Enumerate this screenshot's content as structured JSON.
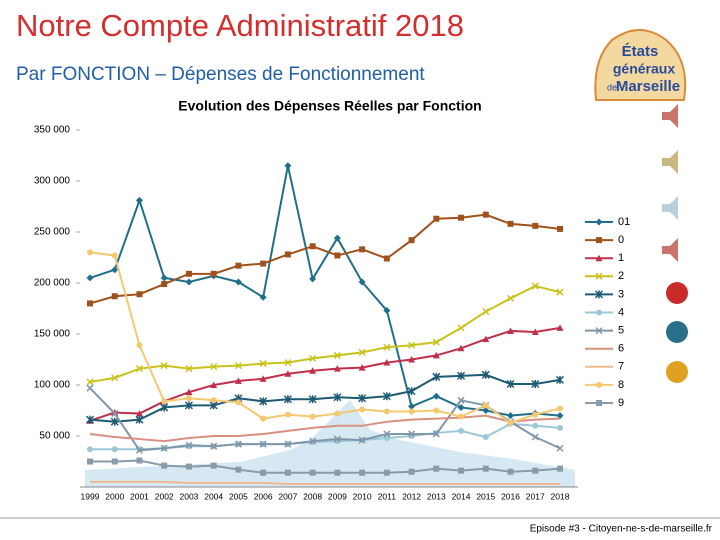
{
  "title": "Notre Compte Administratif 2018",
  "subtitle": "Par FONCTION – Dépenses de Fonctionnement",
  "logo": {
    "line1": "États",
    "line2": "généraux",
    "line3": "de",
    "line4": "Marseille"
  },
  "footer": "Episode #3 - Citoyen-ne-s-de-marseille.fr",
  "chart_data": {
    "type": "line",
    "title": "Evolution des Dépenses Réelles par Fonction",
    "categories": [
      "1999",
      "2000",
      "2001",
      "2002",
      "2003",
      "2004",
      "2005",
      "2006",
      "2007",
      "2008",
      "2009",
      "2010",
      "2011",
      "2012",
      "2013",
      "2014",
      "2015",
      "2016",
      "2017",
      "2018"
    ],
    "ylim": [
      0,
      350000
    ],
    "yticks": [
      {
        "value": 50000,
        "label": "50 000"
      },
      {
        "value": 100000,
        "label": "100 000"
      },
      {
        "value": 150000,
        "label": "150 000"
      },
      {
        "value": 200000,
        "label": "200 000"
      },
      {
        "value": 250000,
        "label": "250 000"
      },
      {
        "value": 300000,
        "label": "300 000"
      },
      {
        "value": 350000,
        "label": "350 000"
      }
    ],
    "grid": false,
    "legend": "right",
    "series": [
      {
        "name": "01",
        "color": "#1f6f8b",
        "values": [
          205000,
          213000,
          281000,
          205000,
          201000,
          207000,
          201000,
          186000,
          315000,
          204000,
          244000,
          201000,
          173000,
          79000,
          89000,
          78000,
          75000,
          70000,
          72000,
          70000
        ]
      },
      {
        "name": "0",
        "color": "#a0521d",
        "values": [
          180000,
          187000,
          189000,
          199000,
          209000,
          209000,
          217000,
          219000,
          228000,
          236000,
          227000,
          233000,
          224000,
          242000,
          263000,
          264000,
          267000,
          258000,
          256000,
          253000
        ]
      },
      {
        "name": "1",
        "color": "#c0304a",
        "values": [
          65000,
          73000,
          72000,
          84000,
          93000,
          100000,
          104000,
          106000,
          111000,
          114000,
          116000,
          117000,
          122000,
          125000,
          129000,
          136000,
          145000,
          153000,
          152000,
          156000
        ]
      },
      {
        "name": "2",
        "color": "#c8c21a",
        "values": [
          103000,
          107000,
          116000,
          119000,
          116000,
          118000,
          119000,
          121000,
          122000,
          126000,
          129000,
          132000,
          137000,
          139000,
          142000,
          156000,
          172000,
          185000,
          197000,
          191000
        ]
      },
      {
        "name": "3",
        "color": "#1d5a73",
        "values": [
          66000,
          64000,
          66000,
          78000,
          80000,
          80000,
          87000,
          84000,
          86000,
          86000,
          88000,
          87000,
          89000,
          94000,
          108000,
          109000,
          110000,
          101000,
          101000,
          105000
        ]
      },
      {
        "name": "4",
        "color": "#9cc8d8",
        "values": [
          37000,
          37000,
          37000,
          38000,
          40000,
          40000,
          42000,
          42000,
          42000,
          44000,
          45000,
          46000,
          48000,
          50000,
          53000,
          55000,
          49000,
          62000,
          60000,
          58000
        ]
      },
      {
        "name": "5",
        "color": "#7f97a8",
        "values": [
          97000,
          72000,
          36000,
          38000,
          41000,
          40000,
          42000,
          42000,
          42000,
          45000,
          47000,
          46000,
          52000,
          52000,
          52000,
          85000,
          80000,
          64000,
          49000,
          38000
        ]
      },
      {
        "name": "6",
        "color": "#d89080",
        "values": [
          52000,
          49000,
          47000,
          45000,
          48000,
          50000,
          50000,
          52000,
          55000,
          58000,
          60000,
          60000,
          64000,
          66000,
          67000,
          68000,
          70000,
          64000,
          66000,
          67000
        ]
      },
      {
        "name": "7",
        "color": "#f0b890",
        "values": [
          5000,
          5000,
          5000,
          5000,
          4000,
          4000,
          4000,
          4000,
          3000,
          3000,
          3000,
          3000,
          3000,
          3000,
          3000,
          3000,
          3000,
          3000,
          3000,
          3000
        ]
      },
      {
        "name": "8",
        "color": "#f5c870",
        "values": [
          230000,
          227000,
          139000,
          84000,
          87000,
          85000,
          83000,
          67000,
          71000,
          69000,
          72000,
          76000,
          74000,
          74000,
          75000,
          69000,
          80000,
          63000,
          71000,
          77000
        ]
      },
      {
        "name": "9",
        "color": "#8a9aa8",
        "values": [
          25000,
          25000,
          26000,
          21000,
          20000,
          21000,
          17000,
          14000,
          14000,
          14000,
          14000,
          14000,
          14000,
          15000,
          18000,
          16000,
          18000,
          15000,
          16000,
          18000
        ]
      }
    ]
  }
}
